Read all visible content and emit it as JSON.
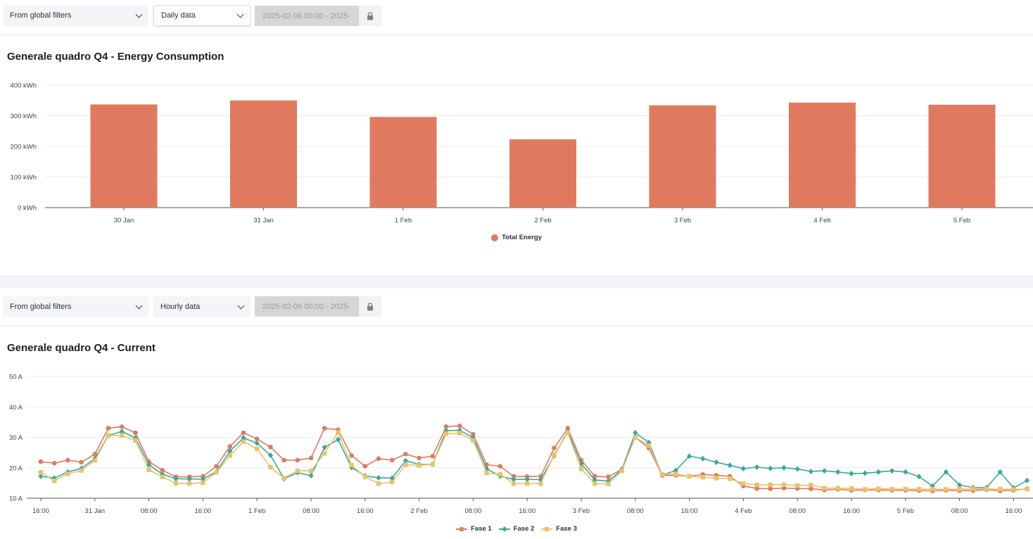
{
  "panel1": {
    "filters": {
      "global_label": "From global filters",
      "interval_label": "Daily data",
      "date_range": "2025-02-06 00:00 - 2025-"
    },
    "title": "Generale quadro Q4 - Energy Consumption",
    "chart_data": {
      "type": "bar",
      "categories": [
        "30 Jan",
        "31 Jan",
        "1 Feb",
        "2 Feb",
        "3 Feb",
        "4 Feb",
        "5 Feb"
      ],
      "series": [
        {
          "name": "Total Energy",
          "values": [
            337,
            350,
            296,
            223,
            334,
            343,
            336
          ],
          "color": "#e07a5f"
        }
      ],
      "ylim": [
        0,
        400
      ],
      "yticks": [
        0,
        100,
        200,
        300,
        400
      ],
      "ytick_labels": [
        "0 kWh",
        "100 kWh",
        "200 kWh",
        "300 kWh",
        "400 kWh"
      ],
      "unit": "kWh",
      "legend": "bottom-center",
      "grid": true
    }
  },
  "panel2": {
    "filters": {
      "global_label": "From global filters",
      "interval_label": "Hourly data",
      "date_range": "2025-02-06 00:00 - 2025-"
    },
    "title": "Generale quadro Q4 - Current",
    "chart_data": {
      "type": "line",
      "x_start": "2025-01-30 16:00",
      "x_step_hours": 2,
      "x": [
        "30 Jan 16:00",
        "30 Jan 18:00",
        "30 Jan 20:00",
        "30 Jan 22:00",
        "31 Jan 00:00",
        "31 Jan 02:00",
        "31 Jan 04:00",
        "31 Jan 06:00",
        "31 Jan 08:00",
        "31 Jan 10:00",
        "31 Jan 12:00",
        "31 Jan 14:00",
        "31 Jan 16:00",
        "31 Jan 18:00",
        "31 Jan 20:00",
        "31 Jan 22:00",
        "1 Feb 00:00",
        "1 Feb 02:00",
        "1 Feb 04:00",
        "1 Feb 06:00",
        "1 Feb 08:00",
        "1 Feb 10:00",
        "1 Feb 12:00",
        "1 Feb 14:00",
        "1 Feb 16:00",
        "1 Feb 18:00",
        "1 Feb 20:00",
        "1 Feb 22:00",
        "2 Feb 00:00",
        "2 Feb 02:00",
        "2 Feb 04:00",
        "2 Feb 06:00",
        "2 Feb 08:00",
        "2 Feb 10:00",
        "2 Feb 12:00",
        "2 Feb 14:00",
        "2 Feb 16:00",
        "2 Feb 18:00",
        "2 Feb 20:00",
        "2 Feb 22:00",
        "3 Feb 00:00",
        "3 Feb 02:00",
        "3 Feb 04:00",
        "3 Feb 06:00",
        "3 Feb 08:00",
        "3 Feb 10:00",
        "3 Feb 12:00",
        "3 Feb 14:00",
        "3 Feb 16:00",
        "3 Feb 18:00",
        "3 Feb 20:00",
        "3 Feb 22:00",
        "4 Feb 00:00",
        "4 Feb 02:00",
        "4 Feb 04:00",
        "4 Feb 06:00",
        "4 Feb 08:00",
        "4 Feb 10:00",
        "4 Feb 12:00",
        "4 Feb 14:00",
        "4 Feb 16:00",
        "4 Feb 18:00",
        "4 Feb 20:00",
        "4 Feb 22:00",
        "5 Feb 00:00",
        "5 Feb 02:00",
        "5 Feb 04:00",
        "5 Feb 06:00",
        "5 Feb 08:00",
        "5 Feb 10:00",
        "5 Feb 12:00",
        "5 Feb 14:00",
        "5 Feb 16:00",
        "5 Feb 18:00"
      ],
      "series": [
        {
          "name": "Fase 1",
          "color": "#e07a5f",
          "marker": "circle",
          "values": [
            22,
            21.5,
            22.5,
            21.8,
            24.5,
            33,
            33.5,
            31.5,
            22,
            19.2,
            17,
            17,
            17.2,
            20.5,
            27,
            31.5,
            29.5,
            26.8,
            22.5,
            22.5,
            23.2,
            33,
            32.5,
            24,
            20.5,
            23,
            22.5,
            24.5,
            23.2,
            23.8,
            33.5,
            33.8,
            31,
            21,
            20.5,
            17.2,
            17.1,
            17.2,
            26.5,
            33,
            22.5,
            17.2,
            17,
            19.5,
            30,
            26.5,
            17.5,
            17.5,
            17.2,
            17.8,
            17.5,
            17.2,
            14,
            13.2,
            13.1,
            13.3,
            13.2,
            13.1,
            12.7,
            12.9,
            12.6,
            12.7,
            12.7,
            12.6,
            12.6,
            12.5,
            12.4,
            12.6,
            12.5,
            12.5,
            12.8,
            12.4,
            12.6,
            13.1
          ]
        },
        {
          "name": "Fase 2",
          "color": "#3aa89a",
          "marker": "diamond",
          "values": [
            17.2,
            16.6,
            18.6,
            19.8,
            23,
            30.6,
            31.9,
            29.8,
            21,
            17.9,
            16.4,
            16.3,
            16.3,
            18.7,
            25.5,
            29.8,
            28.1,
            24.1,
            16.4,
            18.4,
            17.4,
            26.7,
            29.3,
            20.1,
            17.3,
            16.7,
            16.6,
            22.3,
            21.1,
            21.1,
            32.2,
            32.3,
            29.9,
            19.7,
            17.2,
            16.2,
            16.2,
            16.1,
            24,
            31.9,
            21.3,
            16,
            15.6,
            19.3,
            31.5,
            28.3,
            17.6,
            19.1,
            23.8,
            23,
            21.8,
            20.8,
            19.7,
            20.2,
            19.8,
            20,
            19.6,
            18.8,
            19,
            18.6,
            18.1,
            18.2,
            18.6,
            19,
            18.6,
            17.1,
            14,
            18.6,
            14.3,
            13.5,
            13.5,
            18.6,
            13.4,
            15.8
          ]
        },
        {
          "name": "Fase 3",
          "color": "#e8c36a",
          "marker": "square",
          "values": [
            18.5,
            15.7,
            18,
            19.1,
            22.4,
            30.5,
            30.6,
            29,
            19.3,
            17,
            14.9,
            14.8,
            15.1,
            18.5,
            24,
            28.6,
            26.2,
            20.2,
            16.6,
            19,
            19,
            24.7,
            31.6,
            20.8,
            17,
            14.8,
            15.3,
            21,
            20.8,
            21.1,
            31.2,
            31.4,
            29,
            18.3,
            17.8,
            14.8,
            14.8,
            14.8,
            24.3,
            31.5,
            19.6,
            14.8,
            14.7,
            19,
            30,
            27.3,
            17.8,
            17.9,
            17.2,
            16.9,
            16.6,
            16.4,
            14.8,
            14.4,
            14.4,
            14.4,
            14.2,
            14.3,
            13.3,
            13.3,
            13.2,
            12.9,
            13.1,
            13,
            13,
            13,
            13,
            12.9,
            13,
            13.1,
            13,
            13,
            12.9,
            13
          ]
        }
      ],
      "ylim": [
        10,
        50
      ],
      "yticks": [
        10,
        20,
        30,
        40,
        50
      ],
      "ytick_labels": [
        "10 A",
        "20 A",
        "30 A",
        "40 A",
        "50 A"
      ],
      "xtick_labels": [
        "16:00",
        "31 Jan",
        "08:00",
        "16:00",
        "1 Feb",
        "08:00",
        "16:00",
        "2 Feb",
        "08:00",
        "16:00",
        "3 Feb",
        "08:00",
        "16:00",
        "4 Feb",
        "08:00",
        "16:00",
        "5 Feb",
        "08:00",
        "16:00"
      ],
      "unit": "A",
      "legend": "bottom-center",
      "grid": true
    }
  }
}
